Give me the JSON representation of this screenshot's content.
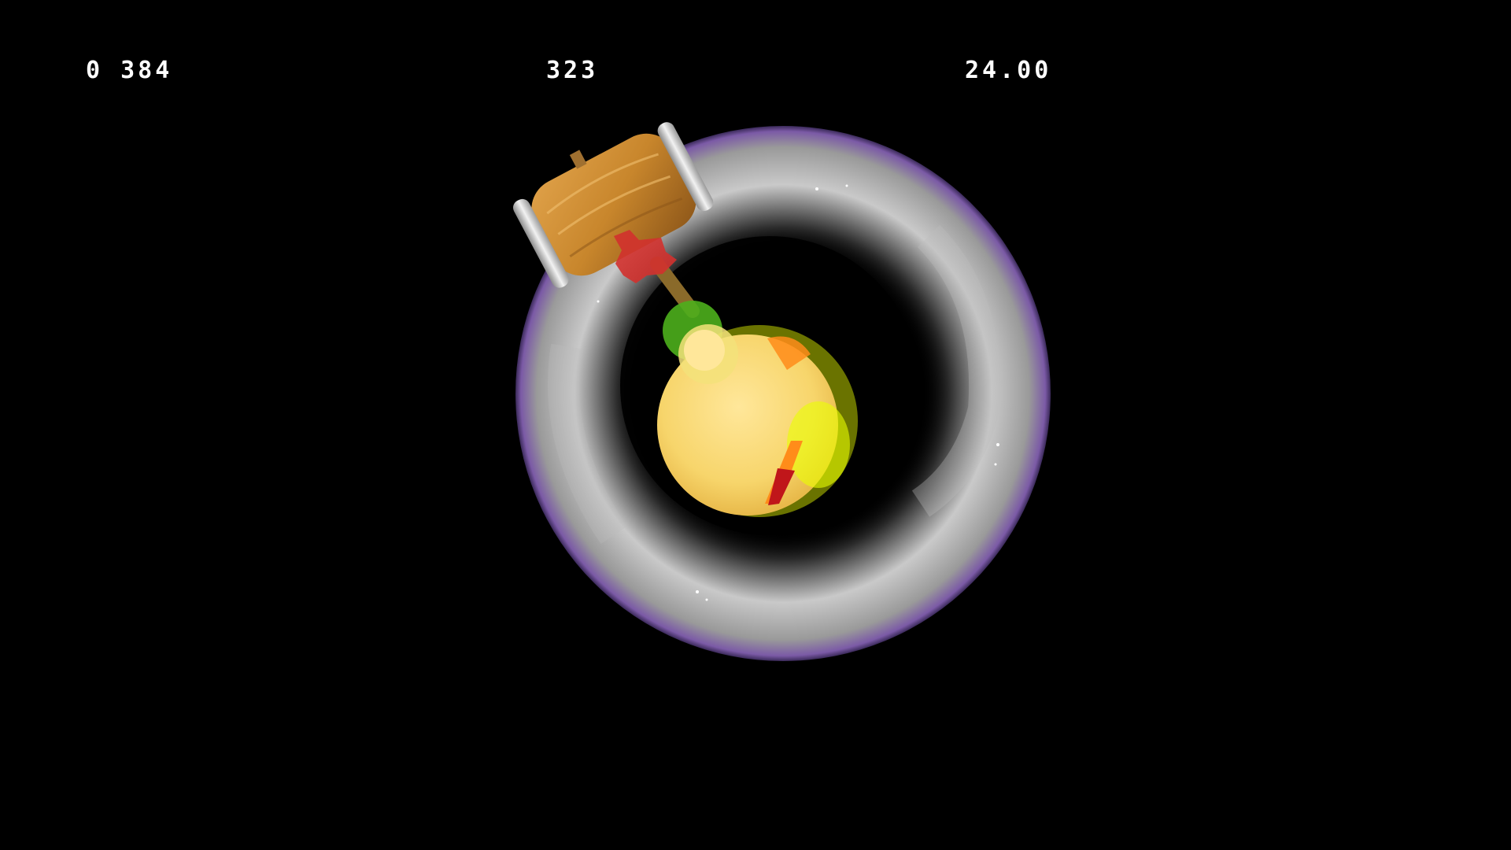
{
  "hud": {
    "left_value": "0 384",
    "center_value": "323",
    "right_value": "24.00"
  },
  "scene": {
    "background_color": "#000000",
    "hud_text_color": "#ffffff",
    "ring_colors": {
      "smoke_light": "#d9d9d9",
      "smoke_dark": "#3b3b3b",
      "rim_purple": "#7b5aa6"
    },
    "character_colors": {
      "body": "#f7d56b",
      "highlight": "#eaff00",
      "orange_flame": "#ff8c1a",
      "red_accent": "#c0161a",
      "green_glow": "#4caf1c"
    },
    "item": {
      "name": "hammer-item",
      "wood_color": "#c8862c",
      "band_color": "#d9d9d9",
      "impact_color": "#d1312d"
    }
  }
}
